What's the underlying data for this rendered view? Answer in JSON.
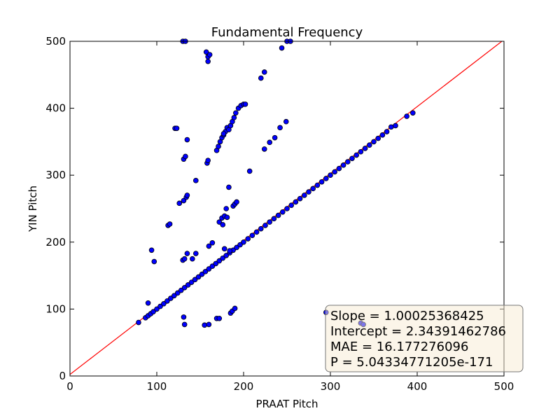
{
  "chart_data": {
    "type": "scatter",
    "title": "Fundamental Frequency",
    "xlabel": "PRAAT Pitch",
    "ylabel": "YIN Pitch",
    "xlim": [
      0,
      500
    ],
    "ylim": [
      0,
      500
    ],
    "xticks": [
      "0",
      "100",
      "200",
      "300",
      "400",
      "500"
    ],
    "yticks": [
      "0",
      "100",
      "200",
      "300",
      "400",
      "500"
    ],
    "grid": false,
    "colors": {
      "points": "#0000ff",
      "point_edge": "#000000",
      "fit_line": "#ff0000",
      "stats_box": "#f8ebd4"
    },
    "fit_line": {
      "slope": 1.00025368425,
      "intercept": 2.34391462786
    },
    "stats_box": {
      "placement": "bottom-right",
      "lines": [
        "Slope = 1.00025368425",
        "Intercept = 2.34391462786",
        "MAE = 16.177276096",
        "P = 5.04334771205e-171"
      ]
    },
    "points": [
      [
        79,
        80
      ],
      [
        87,
        87
      ],
      [
        90,
        90
      ],
      [
        93,
        93
      ],
      [
        96,
        96
      ],
      [
        100,
        100
      ],
      [
        104,
        104
      ],
      [
        108,
        108
      ],
      [
        112,
        112
      ],
      [
        116,
        116
      ],
      [
        120,
        120
      ],
      [
        124,
        124
      ],
      [
        128,
        128
      ],
      [
        132,
        132
      ],
      [
        136,
        136
      ],
      [
        140,
        140
      ],
      [
        144,
        144
      ],
      [
        148,
        148
      ],
      [
        152,
        152
      ],
      [
        156,
        156
      ],
      [
        160,
        160
      ],
      [
        164,
        164
      ],
      [
        168,
        168
      ],
      [
        172,
        172
      ],
      [
        176,
        176
      ],
      [
        180,
        180
      ],
      [
        184,
        184
      ],
      [
        188,
        188
      ],
      [
        192,
        192
      ],
      [
        196,
        196
      ],
      [
        200,
        200
      ],
      [
        205,
        205
      ],
      [
        210,
        210
      ],
      [
        215,
        215
      ],
      [
        220,
        220
      ],
      [
        225,
        225
      ],
      [
        230,
        230
      ],
      [
        235,
        235
      ],
      [
        240,
        240
      ],
      [
        245,
        245
      ],
      [
        250,
        250
      ],
      [
        255,
        255
      ],
      [
        260,
        260
      ],
      [
        265,
        265
      ],
      [
        270,
        270
      ],
      [
        275,
        275
      ],
      [
        280,
        280
      ],
      [
        285,
        285
      ],
      [
        290,
        290
      ],
      [
        295,
        295
      ],
      [
        300,
        300
      ],
      [
        305,
        305
      ],
      [
        310,
        310
      ],
      [
        315,
        315
      ],
      [
        320,
        320
      ],
      [
        325,
        325
      ],
      [
        330,
        330
      ],
      [
        335,
        335
      ],
      [
        340,
        340
      ],
      [
        345,
        345
      ],
      [
        350,
        350
      ],
      [
        355,
        355
      ],
      [
        360,
        360
      ],
      [
        365,
        365
      ],
      [
        370,
        372
      ],
      [
        375,
        374
      ],
      [
        388,
        388
      ],
      [
        395,
        393
      ],
      [
        90,
        109
      ],
      [
        94,
        188
      ],
      [
        97,
        171
      ],
      [
        113,
        225
      ],
      [
        115,
        227
      ],
      [
        121,
        370
      ],
      [
        123,
        370
      ],
      [
        126,
        258
      ],
      [
        131,
        262
      ],
      [
        131,
        324
      ],
      [
        133,
        328
      ],
      [
        134,
        267
      ],
      [
        135,
        270
      ],
      [
        135,
        353
      ],
      [
        130,
        173
      ],
      [
        132,
        175
      ],
      [
        135,
        183
      ],
      [
        141,
        175
      ],
      [
        145,
        183
      ],
      [
        145,
        292
      ],
      [
        131,
        88
      ],
      [
        132,
        77
      ],
      [
        158,
        318
      ],
      [
        159,
        322
      ],
      [
        157,
        484
      ],
      [
        159,
        477
      ],
      [
        159,
        470
      ],
      [
        161,
        480
      ],
      [
        155,
        76
      ],
      [
        160,
        77
      ],
      [
        160,
        194
      ],
      [
        164,
        199
      ],
      [
        169,
        337
      ],
      [
        171,
        343
      ],
      [
        173,
        350
      ],
      [
        175,
        356
      ],
      [
        177,
        360
      ],
      [
        179,
        365
      ],
      [
        181,
        371
      ],
      [
        183,
        368
      ],
      [
        185,
        374
      ],
      [
        187,
        380
      ],
      [
        189,
        386
      ],
      [
        191,
        393
      ],
      [
        194,
        400
      ],
      [
        197,
        404
      ],
      [
        200,
        406
      ],
      [
        202,
        406
      ],
      [
        177,
        362
      ],
      [
        172,
        230
      ],
      [
        175,
        236
      ],
      [
        178,
        239
      ],
      [
        181,
        237
      ],
      [
        176,
        226
      ],
      [
        180,
        250
      ],
      [
        183,
        282
      ],
      [
        188,
        254
      ],
      [
        190,
        257
      ],
      [
        192,
        260
      ],
      [
        178,
        190
      ],
      [
        184,
        187
      ],
      [
        169,
        86
      ],
      [
        172,
        86
      ],
      [
        185,
        94
      ],
      [
        187,
        97
      ],
      [
        190,
        101
      ],
      [
        207,
        306
      ],
      [
        220,
        445
      ],
      [
        224,
        454
      ],
      [
        224,
        339
      ],
      [
        230,
        349
      ],
      [
        236,
        356
      ],
      [
        242,
        371
      ],
      [
        244,
        490
      ],
      [
        249,
        380
      ],
      [
        250,
        500
      ],
      [
        254,
        500
      ],
      [
        130,
        500
      ],
      [
        133,
        500
      ],
      [
        295,
        95
      ],
      [
        335,
        79
      ],
      [
        338,
        77
      ]
    ]
  }
}
